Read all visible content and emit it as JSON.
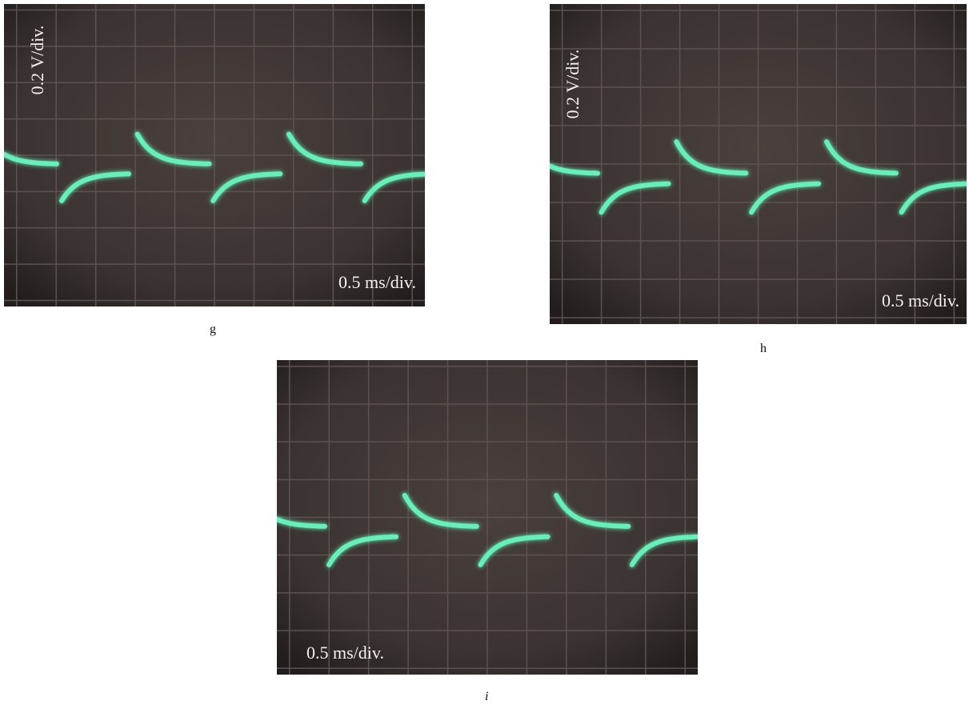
{
  "panels": [
    {
      "label": "g",
      "volts": "0.2 V/div.",
      "time": "0.5 ms/div."
    },
    {
      "label": "h",
      "volts": "0.2 V/div.",
      "time": "0.5 ms/div."
    },
    {
      "label": "i",
      "time": "0.5 ms/div."
    }
  ]
}
